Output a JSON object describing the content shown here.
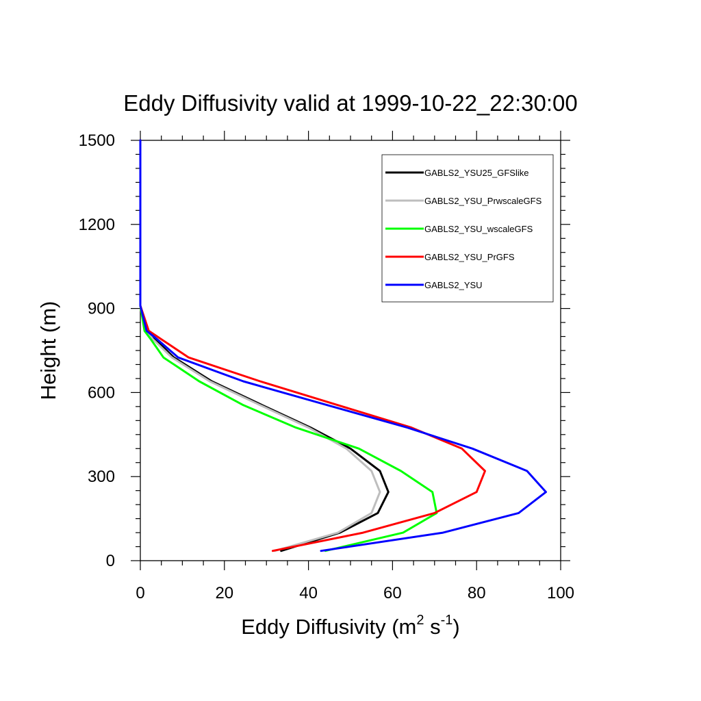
{
  "chart_data": {
    "type": "line",
    "title": "Eddy Diffusivity valid at 1999-10-22_22:30:00",
    "xlabel_base": "Eddy Diffusivity (m",
    "xlabel_sup1": "2",
    "xlabel_mid": " s",
    "xlabel_sup2": "-1",
    "xlabel_end": ")",
    "ylabel": "Height (m)",
    "xlim": [
      0,
      100
    ],
    "ylim": [
      0,
      1500
    ],
    "x_ticks": [
      0,
      20,
      40,
      60,
      80,
      100
    ],
    "x_tick_labels": [
      "0",
      "20",
      "40",
      "60",
      "80",
      "100"
    ],
    "y_ticks": [
      0,
      300,
      600,
      900,
      1200,
      1500
    ],
    "y_tick_labels": [
      "0",
      "300",
      "600",
      "900",
      "1200",
      "1500"
    ],
    "grid": false,
    "legend_position": "top-right",
    "series": [
      {
        "name": "GABLS2_YSU25_GFSlike",
        "color": "#000000",
        "points": [
          [
            33.5,
            35
          ],
          [
            47.5,
            100
          ],
          [
            56.5,
            170
          ],
          [
            59,
            245
          ],
          [
            57,
            320
          ],
          [
            50,
            400
          ],
          [
            40.5,
            475
          ],
          [
            29,
            555
          ],
          [
            17,
            640
          ],
          [
            8,
            725
          ],
          [
            3.5,
            790
          ],
          [
            1.5,
            820
          ],
          [
            0,
            910
          ],
          [
            0,
            1000
          ],
          [
            0,
            1500
          ]
        ]
      },
      {
        "name": "GABLS2_YSU_PrwscaleGFS",
        "color": "#bebebe",
        "points": [
          [
            32,
            35
          ],
          [
            47,
            100
          ],
          [
            55,
            170
          ],
          [
            57,
            245
          ],
          [
            55,
            320
          ],
          [
            49,
            400
          ],
          [
            40,
            475
          ],
          [
            28.5,
            555
          ],
          [
            16.5,
            640
          ],
          [
            7.5,
            725
          ],
          [
            3,
            790
          ],
          [
            1.5,
            820
          ],
          [
            0,
            910
          ],
          [
            0,
            1000
          ],
          [
            0,
            1500
          ]
        ]
      },
      {
        "name": "GABLS2_YSU_wscaleGFS",
        "color": "#00ff00",
        "points": [
          [
            44,
            35
          ],
          [
            62.5,
            100
          ],
          [
            70.5,
            170
          ],
          [
            69.5,
            245
          ],
          [
            62,
            320
          ],
          [
            52,
            400
          ],
          [
            37,
            475
          ],
          [
            24.5,
            555
          ],
          [
            14,
            640
          ],
          [
            5.5,
            725
          ],
          [
            2.5,
            790
          ],
          [
            1,
            820
          ],
          [
            0,
            910
          ],
          [
            0,
            1000
          ],
          [
            0,
            1500
          ]
        ]
      },
      {
        "name": "GABLS2_YSU_PrGFS",
        "color": "#ff0000",
        "points": [
          [
            31.5,
            35
          ],
          [
            53,
            100
          ],
          [
            70,
            170
          ],
          [
            80,
            245
          ],
          [
            82,
            320
          ],
          [
            76.5,
            400
          ],
          [
            64.5,
            475
          ],
          [
            47,
            555
          ],
          [
            28.5,
            640
          ],
          [
            11.5,
            725
          ],
          [
            5,
            790
          ],
          [
            2,
            820
          ],
          [
            0,
            910
          ],
          [
            0,
            1000
          ],
          [
            0,
            1500
          ]
        ]
      },
      {
        "name": "GABLS2_YSU",
        "color": "#0000ff",
        "points": [
          [
            43,
            35
          ],
          [
            72,
            100
          ],
          [
            90,
            170
          ],
          [
            96.5,
            245
          ],
          [
            92,
            320
          ],
          [
            79,
            400
          ],
          [
            63.5,
            475
          ],
          [
            44.5,
            555
          ],
          [
            24.5,
            640
          ],
          [
            9,
            725
          ],
          [
            4,
            790
          ],
          [
            1.5,
            820
          ],
          [
            0,
            910
          ],
          [
            0,
            1000
          ],
          [
            0,
            1500
          ]
        ]
      }
    ]
  }
}
